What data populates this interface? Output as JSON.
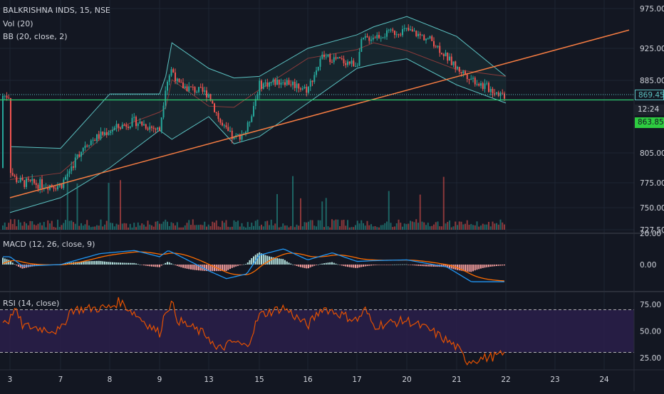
{
  "chart_data": [
    {
      "type": "candlestick",
      "title": "BALKRISHNA INDS, 15, NSE",
      "indicators": [
        "Vol (20)",
        "BB (20, close, 2)"
      ],
      "x_ticks": [
        "3",
        "7",
        "8",
        "9",
        "13",
        "15",
        "16",
        "17",
        "20",
        "21",
        "22",
        "23",
        "24"
      ],
      "y_ticks": [
        975.0,
        925.0,
        885.0,
        805.0,
        775.0,
        750.0,
        727.5
      ],
      "price_guide_points": [
        [
          3,
          760
        ],
        [
          7,
          775
        ],
        [
          9,
          805
        ],
        [
          13,
          822
        ],
        [
          15,
          840
        ],
        [
          17,
          862
        ],
        [
          20,
          873
        ],
        [
          21,
          888
        ],
        [
          24,
          950
        ]
      ],
      "bollinger": {
        "upper": [
          [
            3,
            812
          ],
          [
            7,
            810
          ],
          [
            8,
            870
          ],
          [
            9,
            870
          ],
          [
            9.5,
            890
          ],
          [
            10,
            932
          ],
          [
            13,
            900
          ],
          [
            14,
            888
          ],
          [
            15,
            890
          ],
          [
            16,
            925
          ],
          [
            17,
            942
          ],
          [
            18,
            952
          ],
          [
            20,
            965
          ],
          [
            21,
            940
          ],
          [
            22,
            890
          ]
        ],
        "lower": [
          [
            3,
            745
          ],
          [
            7,
            760
          ],
          [
            8,
            790
          ],
          [
            9,
            830
          ],
          [
            10,
            820
          ],
          [
            13,
            845
          ],
          [
            14,
            815
          ],
          [
            15,
            823
          ],
          [
            16,
            860
          ],
          [
            17,
            900
          ],
          [
            18,
            905
          ],
          [
            20,
            912
          ],
          [
            21,
            880
          ],
          [
            22,
            860
          ]
        ]
      },
      "trendline": {
        "from": [
          3,
          760
        ],
        "to": [
          24.5,
          948
        ]
      },
      "horizontal_level": 863.85,
      "last_price": "869.45",
      "countdown": "12:24",
      "level_label": "863.85",
      "colors": {
        "up": "#26a69a",
        "down": "#ef5350",
        "trend": "#f57c42",
        "level": "#2ecc71",
        "bb": "#5bc0c0"
      }
    },
    {
      "type": "line",
      "title": "MACD (12, 26, close, 9)",
      "y_ticks": [
        "20.00",
        "0.00"
      ],
      "colors": {
        "macd": "#2196f3",
        "signal": "#ff6d00"
      }
    },
    {
      "type": "line",
      "title": "RSI (14, close)",
      "y_ticks": [
        "75.00",
        "50.00",
        "25.00"
      ],
      "upper_band": 70,
      "lower_band": 30,
      "colors": {
        "line": "#e65100",
        "band_fill": "#2a1f4a"
      }
    }
  ]
}
